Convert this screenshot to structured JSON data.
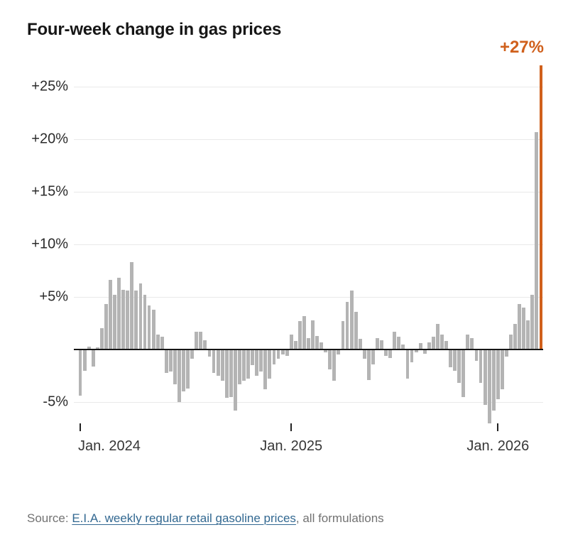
{
  "title": "Four-week change in gas prices",
  "annotation": {
    "label": "+27%",
    "color": "#d0601c"
  },
  "source": {
    "prefix": "Source: ",
    "link_text": "E.I.A. weekly regular retail gasoline prices",
    "suffix": ", all formulations"
  },
  "chart_data": {
    "type": "bar",
    "title": "Four-week change in gas prices",
    "unit": "percent change over four weeks, weekly observations",
    "x_range": "Jan. 2024 through early 2026, weekly",
    "ylim": [
      -7.5,
      27.5
    ],
    "grid": true,
    "bar_color": "#b4b4b4",
    "highlight_color": "#d0601c",
    "highlight_index": 107,
    "highlight_label": "+27%",
    "y_ticks": [
      {
        "label": "+25%",
        "value": 25
      },
      {
        "label": "+20%",
        "value": 20
      },
      {
        "label": "+15%",
        "value": 15
      },
      {
        "label": "+10%",
        "value": 10
      },
      {
        "label": "+5%",
        "value": 5
      },
      {
        "label": "-5%",
        "value": -5
      }
    ],
    "x_ticks": [
      {
        "label": "Jan. 2024",
        "bar_index": 0
      },
      {
        "label": "Jan. 2025",
        "bar_index": 49
      },
      {
        "label": "Jan. 2026",
        "bar_index": 97
      }
    ],
    "values": [
      -4.4,
      -2.0,
      0.3,
      -1.6,
      0.2,
      2.0,
      4.3,
      6.6,
      5.2,
      6.8,
      5.7,
      5.6,
      8.3,
      5.6,
      6.3,
      5.2,
      4.2,
      3.8,
      1.4,
      1.2,
      -2.2,
      -2.1,
      -3.3,
      -5.0,
      -4.0,
      -3.7,
      -0.9,
      1.7,
      1.7,
      0.9,
      -0.7,
      -2.2,
      -2.5,
      -3.0,
      -4.6,
      -4.5,
      -5.8,
      -3.3,
      -3.0,
      -2.8,
      -1.5,
      -2.5,
      -2.1,
      -3.8,
      -2.8,
      -1.4,
      -0.9,
      -0.5,
      -0.6,
      1.4,
      0.8,
      2.7,
      3.2,
      1.1,
      2.8,
      1.3,
      0.7,
      -0.3,
      -1.9,
      -3.0,
      -0.5,
      2.7,
      4.5,
      5.6,
      3.6,
      1.0,
      -0.9,
      -2.9,
      -1.4,
      1.1,
      0.9,
      -0.6,
      -0.8,
      1.7,
      1.2,
      0.5,
      -2.8,
      -1.2,
      -0.3,
      0.6,
      -0.4,
      0.7,
      1.2,
      2.4,
      1.4,
      0.8,
      -1.7,
      -2.0,
      -3.2,
      -4.5,
      1.4,
      1.1,
      -1.1,
      -3.2,
      -5.3,
      -7.0,
      -5.8,
      -4.7,
      -3.8,
      -0.7,
      1.4,
      2.4,
      4.3,
      4.0,
      2.8,
      5.2,
      20.7,
      27.0
    ]
  }
}
